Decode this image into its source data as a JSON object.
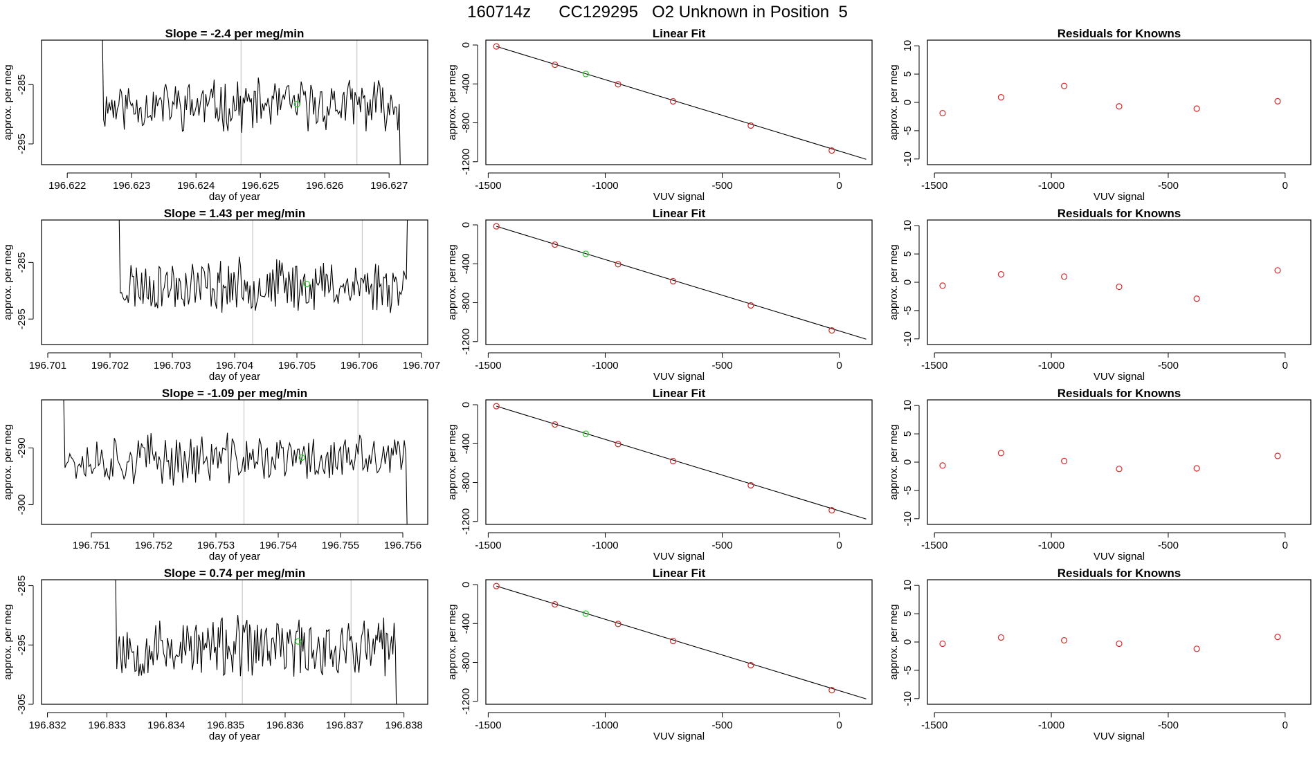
{
  "main_title": "160714z      CC129295   O2 Unknown in Position  5",
  "colors": {
    "line": "#000000",
    "known_point": "#d62728",
    "unknown_point": "#22cc22",
    "marker_line": "#c8c8c8"
  },
  "chart_data": [
    {
      "type": "line",
      "title": "Slope =  -2.4  per meg/min",
      "xlabel": "day of year",
      "ylabel": "approx. per meg",
      "xlim": [
        196.6216,
        196.6276
      ],
      "ylim": [
        -298.5,
        -277.5
      ],
      "xticks": [
        "196.622",
        "196.623",
        "196.624",
        "196.625",
        "196.626",
        "196.627"
      ],
      "xtick_values": [
        196.622,
        196.623,
        196.624,
        196.625,
        196.626,
        196.627
      ],
      "yticks": [
        "-285",
        "-295"
      ],
      "ytick_values": [
        -285,
        -295
      ],
      "vlines": [
        196.6247,
        196.6265
      ],
      "unknown_point": {
        "x": 196.62557,
        "y": -288.3
      },
      "series_range": [
        196.6225,
        196.6272
      ],
      "series_baseline": -288.5,
      "series_amplitude": 3.6,
      "seed": 11
    },
    {
      "type": "scatter",
      "title": "Linear Fit",
      "xlabel": "VUV signal",
      "ylabel": "approx. per meg",
      "xlim": [
        -1510,
        140
      ],
      "ylim": [
        -1230,
        50
      ],
      "xticks": [
        "-1500",
        "-1000",
        "-500",
        "0"
      ],
      "xtick_values": [
        -1500,
        -1000,
        -500,
        0
      ],
      "yticks": [
        "0",
        "-400",
        "-800",
        "-1200"
      ],
      "ytick_values": [
        0,
        -400,
        -800,
        -1200
      ],
      "known_x": [
        -1465,
        -1215,
        -945,
        -710,
        -378,
        -32
      ],
      "known_y": [
        -15,
        -203,
        -404,
        -579,
        -828,
        -1085
      ],
      "unknown_point": {
        "x": -1083,
        "y": -298
      },
      "fit_line": [
        [
          -1465,
          -15
        ],
        [
          115,
          -1175
        ]
      ]
    },
    {
      "type": "scatter",
      "title": "Residuals for Knowns",
      "xlabel": "VUV signal",
      "ylabel": "approx. per meg",
      "xlim": [
        -1530,
        110
      ],
      "ylim": [
        -11,
        11
      ],
      "xticks": [
        "-1500",
        "-1000",
        "-500",
        "0"
      ],
      "xtick_values": [
        -1500,
        -1000,
        -500,
        0
      ],
      "yticks": [
        "10",
        "5",
        "0",
        "-5",
        "-10"
      ],
      "ytick_values": [
        10,
        5,
        0,
        -5,
        -10
      ],
      "known_x": [
        -1465,
        -1215,
        -945,
        -710,
        -378,
        -32
      ],
      "known_y": [
        -1.9,
        0.9,
        2.9,
        -0.7,
        -1.1,
        0.2
      ]
    },
    {
      "type": "line",
      "title": "Slope =  1.43  per meg/min",
      "xlabel": "day of year",
      "ylabel": "approx. per meg",
      "xlim": [
        196.7009,
        196.7071
      ],
      "ylim": [
        -299.5,
        -277.5
      ],
      "xticks": [
        "196.701",
        "196.702",
        "196.703",
        "196.704",
        "196.705",
        "196.706",
        "196.707"
      ],
      "xtick_values": [
        196.701,
        196.702,
        196.703,
        196.704,
        196.705,
        196.706,
        196.707
      ],
      "yticks": [
        "-285",
        "-295"
      ],
      "ytick_values": [
        -285,
        -295
      ],
      "vlines": [
        196.70429,
        196.70605
      ],
      "unknown_point": {
        "x": 196.70516,
        "y": -288.8
      },
      "series_range": [
        196.7021,
        196.7068
      ],
      "series_baseline": -289.0,
      "series_amplitude": 4.0,
      "seed": 23
    },
    {
      "type": "scatter",
      "title": "Linear Fit",
      "xlabel": "VUV signal",
      "ylabel": "approx. per meg",
      "xlim": [
        -1510,
        140
      ],
      "ylim": [
        -1230,
        50
      ],
      "xticks": [
        "-1500",
        "-1000",
        "-500",
        "0"
      ],
      "xtick_values": [
        -1500,
        -1000,
        -500,
        0
      ],
      "yticks": [
        "0",
        "-400",
        "-800",
        "-1200"
      ],
      "ytick_values": [
        0,
        -400,
        -800,
        -1200
      ],
      "known_x": [
        -1465,
        -1215,
        -945,
        -710,
        -378,
        -32
      ],
      "known_y": [
        -15,
        -203,
        -404,
        -579,
        -828,
        -1085
      ],
      "unknown_point": {
        "x": -1083,
        "y": -298
      },
      "fit_line": [
        [
          -1465,
          -15
        ],
        [
          115,
          -1175
        ]
      ]
    },
    {
      "type": "scatter",
      "title": "Residuals for Knowns",
      "xlabel": "VUV signal",
      "ylabel": "approx. per meg",
      "xlim": [
        -1530,
        110
      ],
      "ylim": [
        -11,
        11
      ],
      "xticks": [
        "-1500",
        "-1000",
        "-500",
        "0"
      ],
      "xtick_values": [
        -1500,
        -1000,
        -500,
        0
      ],
      "yticks": [
        "10",
        "5",
        "0",
        "-5",
        "-10"
      ],
      "ytick_values": [
        10,
        5,
        0,
        -5,
        -10
      ],
      "known_x": [
        -1465,
        -1215,
        -945,
        -710,
        -378,
        -32
      ],
      "known_y": [
        -0.6,
        1.4,
        1.0,
        -0.8,
        -2.9,
        2.1
      ]
    },
    {
      "type": "line",
      "title": "Slope =  -1.09  per meg/min",
      "xlabel": "day of year",
      "ylabel": "approx. per meg",
      "xlim": [
        196.7502,
        196.7564
      ],
      "ylim": [
        -303.5,
        -281.5
      ],
      "xticks": [
        "196.751",
        "196.752",
        "196.753",
        "196.754",
        "196.755",
        "196.756"
      ],
      "xtick_values": [
        196.751,
        196.752,
        196.753,
        196.754,
        196.755,
        196.756
      ],
      "yticks": [
        "-290",
        "-300"
      ],
      "ytick_values": [
        -290,
        -300
      ],
      "vlines": [
        196.75345,
        196.75528
      ],
      "unknown_point": {
        "x": 196.75438,
        "y": -291.7
      },
      "series_range": [
        196.7505,
        196.7561
      ],
      "series_baseline": -292.0,
      "series_amplitude": 3.8,
      "seed": 37
    },
    {
      "type": "scatter",
      "title": "Linear Fit",
      "xlabel": "VUV signal",
      "ylabel": "approx. per meg",
      "xlim": [
        -1510,
        140
      ],
      "ylim": [
        -1230,
        50
      ],
      "xticks": [
        "-1500",
        "-1000",
        "-500",
        "0"
      ],
      "xtick_values": [
        -1500,
        -1000,
        -500,
        0
      ],
      "yticks": [
        "0",
        "-400",
        "-800",
        "-1200"
      ],
      "ytick_values": [
        0,
        -400,
        -800,
        -1200
      ],
      "known_x": [
        -1465,
        -1215,
        -945,
        -710,
        -378,
        -32
      ],
      "known_y": [
        -15,
        -203,
        -404,
        -579,
        -828,
        -1085
      ],
      "unknown_point": {
        "x": -1083,
        "y": -298
      },
      "fit_line": [
        [
          -1465,
          -15
        ],
        [
          115,
          -1175
        ]
      ]
    },
    {
      "type": "scatter",
      "title": "Residuals for Knowns",
      "xlabel": "VUV signal",
      "ylabel": "approx. per meg",
      "xlim": [
        -1530,
        110
      ],
      "ylim": [
        -11,
        11
      ],
      "xticks": [
        "-1500",
        "-1000",
        "-500",
        "0"
      ],
      "xtick_values": [
        -1500,
        -1000,
        -500,
        0
      ],
      "yticks": [
        "10",
        "5",
        "0",
        "-5",
        "-10"
      ],
      "ytick_values": [
        10,
        5,
        0,
        -5,
        -10
      ],
      "known_x": [
        -1465,
        -1215,
        -945,
        -710,
        -378,
        -32
      ],
      "known_y": [
        -0.6,
        1.6,
        0.2,
        -1.2,
        -1.1,
        1.1
      ]
    },
    {
      "type": "line",
      "title": "Slope =  0.74  per meg/min",
      "xlabel": "day of year",
      "ylabel": "approx. per meg",
      "xlim": [
        196.8319,
        196.8384
      ],
      "ylim": [
        -305,
        -284
      ],
      "xticks": [
        "196.832",
        "196.833",
        "196.834",
        "196.835",
        "196.836",
        "196.837",
        "196.838"
      ],
      "xtick_values": [
        196.832,
        196.833,
        196.834,
        196.835,
        196.836,
        196.837,
        196.838
      ],
      "yticks": [
        "-285",
        "-295",
        "-305"
      ],
      "ytick_values": [
        -285,
        -295,
        -305
      ],
      "vlines": [
        196.83528,
        196.83711
      ],
      "unknown_point": {
        "x": 196.83622,
        "y": -294.4
      },
      "series_range": [
        196.8331,
        196.8379
      ],
      "series_baseline": -295.5,
      "series_amplitude": 4.5,
      "seed": 53
    },
    {
      "type": "scatter",
      "title": "Linear Fit",
      "xlabel": "VUV signal",
      "ylabel": "approx. per meg",
      "xlim": [
        -1510,
        140
      ],
      "ylim": [
        -1230,
        50
      ],
      "xticks": [
        "-1500",
        "-1000",
        "-500",
        "0"
      ],
      "xtick_values": [
        -1500,
        -1000,
        -500,
        0
      ],
      "yticks": [
        "0",
        "-400",
        "-800",
        "-1200"
      ],
      "ytick_values": [
        0,
        -400,
        -800,
        -1200
      ],
      "known_x": [
        -1465,
        -1215,
        -945,
        -710,
        -378,
        -32
      ],
      "known_y": [
        -15,
        -203,
        -404,
        -579,
        -828,
        -1085
      ],
      "unknown_point": {
        "x": -1083,
        "y": -298
      },
      "fit_line": [
        [
          -1465,
          -15
        ],
        [
          115,
          -1175
        ]
      ]
    },
    {
      "type": "scatter",
      "title": "Residuals for Knowns",
      "xlabel": "VUV signal",
      "ylabel": "approx. per meg",
      "xlim": [
        -1530,
        110
      ],
      "ylim": [
        -11,
        11
      ],
      "xticks": [
        "-1500",
        "-1000",
        "-500",
        "0"
      ],
      "xtick_values": [
        -1500,
        -1000,
        -500,
        0
      ],
      "yticks": [
        "10",
        "5",
        "0",
        "-5",
        "-10"
      ],
      "ytick_values": [
        10,
        5,
        0,
        -5,
        -10
      ],
      "known_x": [
        -1465,
        -1215,
        -945,
        -710,
        -378,
        -32
      ],
      "known_y": [
        -0.3,
        0.8,
        0.3,
        -0.3,
        -1.2,
        0.9
      ]
    }
  ]
}
